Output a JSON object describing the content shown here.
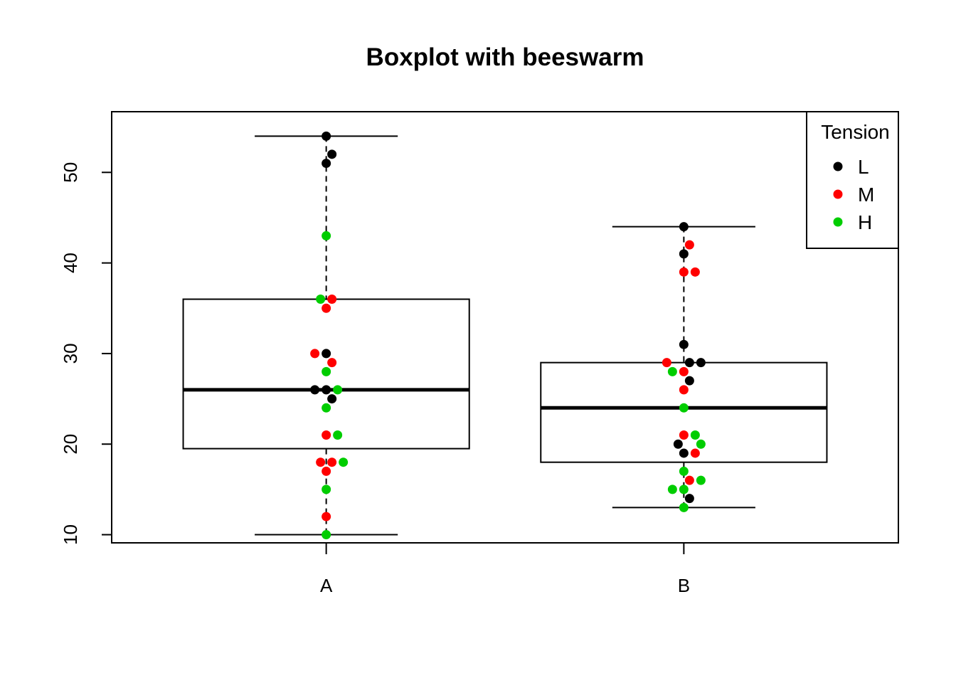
{
  "chart_data": {
    "type": "boxplot-beeswarm",
    "title": "Boxplot with beeswarm",
    "xlabel": "",
    "ylabel": "",
    "categories": [
      "A",
      "B"
    ],
    "ylim": [
      9.1,
      56.7
    ],
    "y_ticks": [
      10,
      20,
      30,
      40,
      50
    ],
    "boxes": [
      {
        "category": "A",
        "min": 10,
        "q1": 19.5,
        "median": 26,
        "q3": 36,
        "max": 54
      },
      {
        "category": "B",
        "min": 13,
        "q1": 18,
        "median": 24,
        "q3": 29,
        "max": 44
      }
    ],
    "legend": {
      "title": "Tension",
      "position": "top-right",
      "entries": [
        {
          "label": "L",
          "color": "#000000"
        },
        {
          "label": "M",
          "color": "#ff0000"
        },
        {
          "label": "H",
          "color": "#00cd00"
        }
      ]
    },
    "points": [
      {
        "category": "A",
        "tension": "L",
        "value": 54,
        "offset": 0
      },
      {
        "category": "A",
        "tension": "L",
        "value": 52,
        "offset": 1
      },
      {
        "category": "A",
        "tension": "L",
        "value": 51,
        "offset": 0
      },
      {
        "category": "A",
        "tension": "L",
        "value": 30,
        "offset": 0
      },
      {
        "category": "A",
        "tension": "L",
        "value": 26,
        "offset": -2
      },
      {
        "category": "A",
        "tension": "L",
        "value": 26,
        "offset": 0
      },
      {
        "category": "A",
        "tension": "L",
        "value": 25,
        "offset": 1
      },
      {
        "category": "A",
        "tension": "M",
        "value": 36,
        "offset": 1
      },
      {
        "category": "A",
        "tension": "M",
        "value": 35,
        "offset": 0
      },
      {
        "category": "A",
        "tension": "M",
        "value": 30,
        "offset": -2
      },
      {
        "category": "A",
        "tension": "M",
        "value": 29,
        "offset": 1
      },
      {
        "category": "A",
        "tension": "M",
        "value": 21,
        "offset": 0
      },
      {
        "category": "A",
        "tension": "M",
        "value": 18,
        "offset": -1
      },
      {
        "category": "A",
        "tension": "M",
        "value": 18,
        "offset": 1
      },
      {
        "category": "A",
        "tension": "M",
        "value": 17,
        "offset": 0
      },
      {
        "category": "A",
        "tension": "M",
        "value": 12,
        "offset": 0
      },
      {
        "category": "A",
        "tension": "H",
        "value": 43,
        "offset": 0
      },
      {
        "category": "A",
        "tension": "H",
        "value": 36,
        "offset": -1
      },
      {
        "category": "A",
        "tension": "H",
        "value": 28,
        "offset": 0
      },
      {
        "category": "A",
        "tension": "H",
        "value": 26,
        "offset": 2
      },
      {
        "category": "A",
        "tension": "H",
        "value": 24,
        "offset": 0
      },
      {
        "category": "A",
        "tension": "H",
        "value": 21,
        "offset": 2
      },
      {
        "category": "A",
        "tension": "H",
        "value": 18,
        "offset": 3
      },
      {
        "category": "A",
        "tension": "H",
        "value": 15,
        "offset": 0
      },
      {
        "category": "A",
        "tension": "H",
        "value": 10,
        "offset": 0
      },
      {
        "category": "B",
        "tension": "L",
        "value": 44,
        "offset": 0
      },
      {
        "category": "B",
        "tension": "L",
        "value": 41,
        "offset": 0
      },
      {
        "category": "B",
        "tension": "L",
        "value": 31,
        "offset": 0
      },
      {
        "category": "B",
        "tension": "L",
        "value": 29,
        "offset": 1
      },
      {
        "category": "B",
        "tension": "L",
        "value": 29,
        "offset": 3
      },
      {
        "category": "B",
        "tension": "L",
        "value": 27,
        "offset": 1
      },
      {
        "category": "B",
        "tension": "L",
        "value": 20,
        "offset": -1
      },
      {
        "category": "B",
        "tension": "L",
        "value": 19,
        "offset": 0
      },
      {
        "category": "B",
        "tension": "L",
        "value": 14,
        "offset": 1
      },
      {
        "category": "B",
        "tension": "M",
        "value": 42,
        "offset": 1
      },
      {
        "category": "B",
        "tension": "M",
        "value": 39,
        "offset": 0
      },
      {
        "category": "B",
        "tension": "M",
        "value": 39,
        "offset": 2
      },
      {
        "category": "B",
        "tension": "M",
        "value": 29,
        "offset": -3
      },
      {
        "category": "B",
        "tension": "M",
        "value": 28,
        "offset": 0
      },
      {
        "category": "B",
        "tension": "M",
        "value": 26,
        "offset": 0
      },
      {
        "category": "B",
        "tension": "M",
        "value": 21,
        "offset": 0
      },
      {
        "category": "B",
        "tension": "M",
        "value": 19,
        "offset": 2
      },
      {
        "category": "B",
        "tension": "M",
        "value": 16,
        "offset": 1
      },
      {
        "category": "B",
        "tension": "H",
        "value": 28,
        "offset": -2
      },
      {
        "category": "B",
        "tension": "H",
        "value": 24,
        "offset": 0
      },
      {
        "category": "B",
        "tension": "H",
        "value": 21,
        "offset": 2
      },
      {
        "category": "B",
        "tension": "H",
        "value": 20,
        "offset": 3
      },
      {
        "category": "B",
        "tension": "H",
        "value": 17,
        "offset": 0
      },
      {
        "category": "B",
        "tension": "H",
        "value": 16,
        "offset": 3
      },
      {
        "category": "B",
        "tension": "H",
        "value": 15,
        "offset": -2
      },
      {
        "category": "B",
        "tension": "H",
        "value": 15,
        "offset": 0
      },
      {
        "category": "B",
        "tension": "H",
        "value": 13,
        "offset": 0
      }
    ]
  }
}
